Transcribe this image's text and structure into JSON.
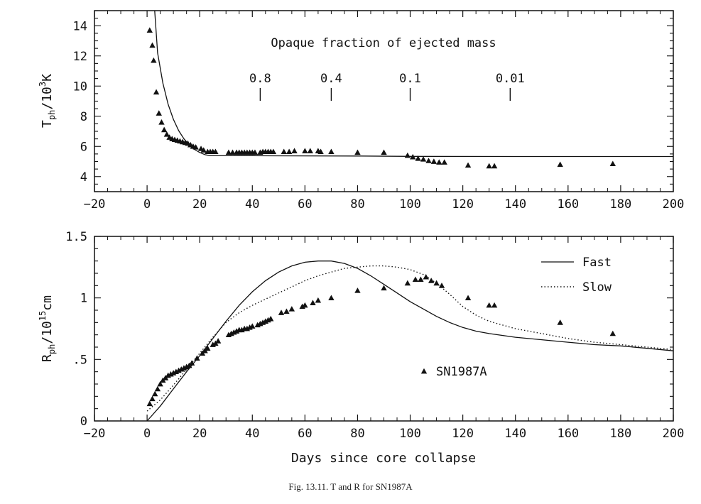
{
  "caption": "Fig. 13.11. T and R for SN1987A",
  "chart_data": [
    {
      "type": "scatter",
      "ylabel": "T_ph/10^3 K",
      "xlim": [
        -20,
        200
      ],
      "ylim": [
        3,
        15
      ],
      "x_ticks": [
        -20,
        0,
        20,
        40,
        60,
        80,
        100,
        120,
        140,
        160,
        180,
        200
      ],
      "y_ticks": [
        4,
        6,
        8,
        10,
        12,
        14
      ],
      "annotation_title": "Opaque fraction of ejected mass",
      "annotation_marks": [
        {
          "x": 43,
          "label": "0.8"
        },
        {
          "x": 70,
          "label": "0.4"
        },
        {
          "x": 100,
          "label": "0.1"
        },
        {
          "x": 138,
          "label": "0.01"
        }
      ],
      "series": [
        {
          "marker": "triangle",
          "points": [
            [
              1,
              13.7
            ],
            [
              2,
              12.7
            ],
            [
              2.5,
              11.7
            ],
            [
              3.5,
              9.6
            ],
            [
              4.5,
              8.2
            ],
            [
              5.5,
              7.6
            ],
            [
              6.5,
              7.1
            ],
            [
              7.5,
              6.8
            ],
            [
              8.5,
              6.6
            ],
            [
              9.5,
              6.5
            ],
            [
              10.5,
              6.45
            ],
            [
              11.5,
              6.4
            ],
            [
              12.5,
              6.35
            ],
            [
              13.5,
              6.3
            ],
            [
              14.5,
              6.25
            ],
            [
              15.5,
              6.2
            ],
            [
              16.5,
              6.1
            ],
            [
              17.5,
              6.0
            ],
            [
              18.5,
              5.95
            ],
            [
              20.5,
              5.85
            ],
            [
              21.5,
              5.75
            ],
            [
              23,
              5.65
            ],
            [
              24,
              5.65
            ],
            [
              25,
              5.65
            ],
            [
              26,
              5.65
            ],
            [
              31,
              5.6
            ],
            [
              32.5,
              5.6
            ],
            [
              34,
              5.6
            ],
            [
              35,
              5.6
            ],
            [
              36,
              5.6
            ],
            [
              37,
              5.6
            ],
            [
              38,
              5.6
            ],
            [
              39,
              5.6
            ],
            [
              40,
              5.6
            ],
            [
              41,
              5.6
            ],
            [
              43,
              5.6
            ],
            [
              44,
              5.65
            ],
            [
              45,
              5.65
            ],
            [
              46,
              5.65
            ],
            [
              47,
              5.65
            ],
            [
              48,
              5.65
            ],
            [
              52,
              5.65
            ],
            [
              54,
              5.65
            ],
            [
              56,
              5.7
            ],
            [
              60,
              5.7
            ],
            [
              62,
              5.7
            ],
            [
              65,
              5.7
            ],
            [
              66,
              5.65
            ],
            [
              70,
              5.65
            ],
            [
              80,
              5.6
            ],
            [
              90,
              5.6
            ],
            [
              99,
              5.4
            ],
            [
              101,
              5.3
            ],
            [
              103,
              5.2
            ],
            [
              105,
              5.15
            ],
            [
              107,
              5.05
            ],
            [
              109,
              5.0
            ],
            [
              111,
              4.95
            ],
            [
              113,
              4.95
            ],
            [
              122,
              4.75
            ],
            [
              130,
              4.7
            ],
            [
              132,
              4.7
            ],
            [
              157,
              4.8
            ],
            [
              177,
              4.85
            ]
          ]
        },
        {
          "marker": "line",
          "points": [
            [
              2.9,
              15
            ],
            [
              4,
              12.2
            ],
            [
              6,
              10.2
            ],
            [
              8,
              8.8
            ],
            [
              10,
              7.8
            ],
            [
              12,
              7.05
            ],
            [
              14,
              6.5
            ],
            [
              16,
              6.1
            ],
            [
              18,
              5.8
            ],
            [
              20,
              5.6
            ],
            [
              22,
              5.45
            ],
            [
              24,
              5.38
            ],
            [
              40,
              5.38
            ],
            [
              80,
              5.36
            ],
            [
              100,
              5.34
            ],
            [
              140,
              5.33
            ],
            [
              200,
              5.33
            ]
          ]
        }
      ]
    },
    {
      "type": "line",
      "xlabel": "Days since core collapse",
      "ylabel": "R_ph/10^15 cm",
      "xlim": [
        -20,
        200
      ],
      "ylim": [
        0,
        1.5
      ],
      "x_ticks": [
        -20,
        0,
        20,
        40,
        60,
        80,
        100,
        120,
        140,
        160,
        180,
        200
      ],
      "y_ticks": [
        {
          "value": 0,
          "label": "0"
        },
        {
          "value": 0.5,
          "label": ".5"
        },
        {
          "value": 1,
          "label": "1"
        },
        {
          "value": 1.5,
          "label": "1.5"
        }
      ],
      "series": [
        {
          "name": "Fast",
          "style": "solid",
          "points": [
            [
              0,
              0
            ],
            [
              5,
              0.12
            ],
            [
              10,
              0.26
            ],
            [
              15,
              0.4
            ],
            [
              20,
              0.53
            ],
            [
              25,
              0.67
            ],
            [
              30,
              0.81
            ],
            [
              35,
              0.94
            ],
            [
              40,
              1.05
            ],
            [
              45,
              1.14
            ],
            [
              50,
              1.21
            ],
            [
              55,
              1.26
            ],
            [
              60,
              1.29
            ],
            [
              65,
              1.3
            ],
            [
              70,
              1.3
            ],
            [
              75,
              1.28
            ],
            [
              80,
              1.24
            ],
            [
              85,
              1.18
            ],
            [
              90,
              1.11
            ],
            [
              95,
              1.04
            ],
            [
              100,
              0.97
            ],
            [
              105,
              0.91
            ],
            [
              110,
              0.85
            ],
            [
              115,
              0.8
            ],
            [
              120,
              0.76
            ],
            [
              125,
              0.73
            ],
            [
              130,
              0.71
            ],
            [
              140,
              0.68
            ],
            [
              150,
              0.66
            ],
            [
              160,
              0.64
            ],
            [
              170,
              0.62
            ],
            [
              180,
              0.61
            ],
            [
              190,
              0.59
            ],
            [
              200,
              0.57
            ]
          ]
        },
        {
          "name": "Slow",
          "style": "dotted",
          "points": [
            [
              0,
              0.08
            ],
            [
              5,
              0.17
            ],
            [
              10,
              0.29
            ],
            [
              15,
              0.42
            ],
            [
              20,
              0.55
            ],
            [
              25,
              0.68
            ],
            [
              30,
              0.8
            ],
            [
              35,
              0.88
            ],
            [
              40,
              0.94
            ],
            [
              45,
              0.99
            ],
            [
              50,
              1.04
            ],
            [
              55,
              1.09
            ],
            [
              60,
              1.14
            ],
            [
              65,
              1.18
            ],
            [
              70,
              1.21
            ],
            [
              75,
              1.24
            ],
            [
              80,
              1.25
            ],
            [
              85,
              1.26
            ],
            [
              90,
              1.26
            ],
            [
              95,
              1.25
            ],
            [
              100,
              1.23
            ],
            [
              105,
              1.19
            ],
            [
              110,
              1.12
            ],
            [
              115,
              1.03
            ],
            [
              120,
              0.93
            ],
            [
              125,
              0.86
            ],
            [
              130,
              0.81
            ],
            [
              135,
              0.78
            ],
            [
              140,
              0.75
            ],
            [
              150,
              0.71
            ],
            [
              160,
              0.67
            ],
            [
              170,
              0.64
            ],
            [
              180,
              0.62
            ],
            [
              190,
              0.6
            ],
            [
              200,
              0.58
            ]
          ]
        },
        {
          "name": "SN1987A",
          "style": "triangle",
          "points": [
            [
              1,
              0.14
            ],
            [
              2,
              0.18
            ],
            [
              3,
              0.22
            ],
            [
              4,
              0.26
            ],
            [
              5,
              0.3
            ],
            [
              6,
              0.33
            ],
            [
              7,
              0.35
            ],
            [
              8,
              0.37
            ],
            [
              9,
              0.38
            ],
            [
              10,
              0.39
            ],
            [
              11,
              0.4
            ],
            [
              12,
              0.41
            ],
            [
              13,
              0.42
            ],
            [
              14,
              0.43
            ],
            [
              15,
              0.44
            ],
            [
              16,
              0.45
            ],
            [
              17,
              0.47
            ],
            [
              19,
              0.51
            ],
            [
              21,
              0.55
            ],
            [
              22,
              0.57
            ],
            [
              23,
              0.59
            ],
            [
              25,
              0.62
            ],
            [
              26,
              0.63
            ],
            [
              27,
              0.65
            ],
            [
              31,
              0.7
            ],
            [
              32,
              0.71
            ],
            [
              33,
              0.72
            ],
            [
              34,
              0.73
            ],
            [
              35,
              0.74
            ],
            [
              36,
              0.74
            ],
            [
              37,
              0.75
            ],
            [
              38,
              0.75
            ],
            [
              39,
              0.76
            ],
            [
              40,
              0.77
            ],
            [
              42,
              0.78
            ],
            [
              43,
              0.79
            ],
            [
              44,
              0.8
            ],
            [
              45,
              0.81
            ],
            [
              46,
              0.82
            ],
            [
              47,
              0.83
            ],
            [
              51,
              0.88
            ],
            [
              53,
              0.89
            ],
            [
              55,
              0.91
            ],
            [
              59,
              0.93
            ],
            [
              60,
              0.94
            ],
            [
              63,
              0.96
            ],
            [
              65,
              0.98
            ],
            [
              70,
              1.0
            ],
            [
              80,
              1.06
            ],
            [
              90,
              1.08
            ],
            [
              99,
              1.12
            ],
            [
              102,
              1.15
            ],
            [
              104,
              1.15
            ],
            [
              106,
              1.17
            ],
            [
              108,
              1.14
            ],
            [
              110,
              1.12
            ],
            [
              112,
              1.1
            ],
            [
              122,
              1.0
            ],
            [
              130,
              0.94
            ],
            [
              132,
              0.94
            ],
            [
              157,
              0.8
            ],
            [
              177,
              0.71
            ]
          ]
        }
      ]
    }
  ]
}
